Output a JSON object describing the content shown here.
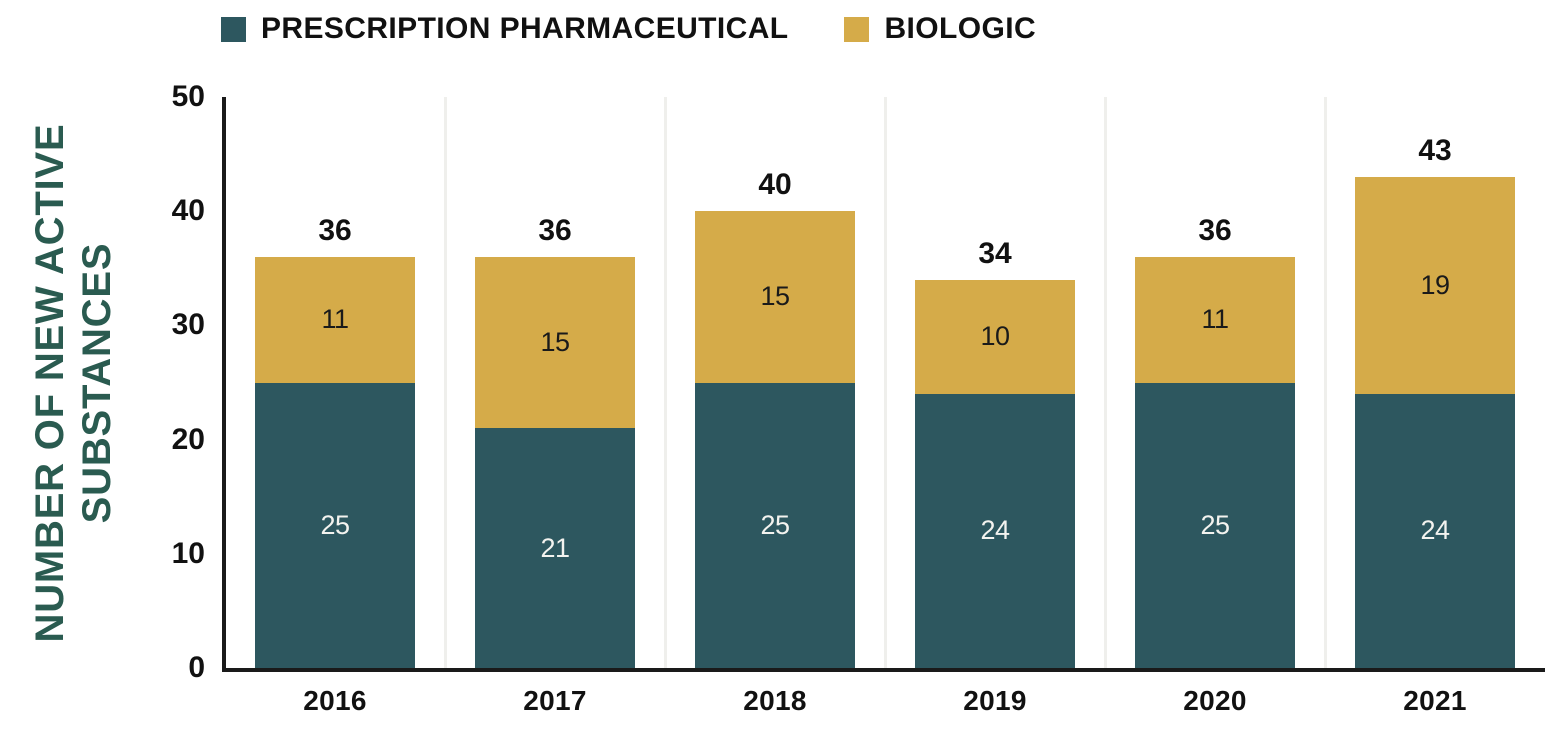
{
  "legend": {
    "items": [
      {
        "label": "PRESCRIPTION PHARMACEUTICAL"
      },
      {
        "label": "BIOLOGIC"
      }
    ]
  },
  "y_axis": {
    "title_line1": "NUMBER OF NEW ACTIVE",
    "title_line2": "SUBSTANCES"
  },
  "chart_data": {
    "type": "bar",
    "stacked": true,
    "title": "",
    "xlabel": "",
    "ylabel": "NUMBER OF NEW ACTIVE SUBSTANCES",
    "categories": [
      "2016",
      "2017",
      "2018",
      "2019",
      "2020",
      "2021"
    ],
    "series": [
      {
        "name": "PRESCRIPTION PHARMACEUTICAL",
        "values": [
          25,
          21,
          25,
          24,
          25,
          24
        ],
        "color": "#2D575F",
        "label_color": "#F3F3EF"
      },
      {
        "name": "BIOLOGIC",
        "values": [
          11,
          15,
          15,
          10,
          11,
          19
        ],
        "color": "#D5AB49",
        "label_color": "#1A1A1A"
      }
    ],
    "totals": [
      36,
      36,
      40,
      34,
      36,
      43
    ],
    "ylim": [
      0,
      50
    ],
    "yticks": [
      0,
      10,
      20,
      30,
      40,
      50
    ],
    "legend_position": "top-left",
    "grid": "vertical category separators",
    "colors": {
      "axis": "#1A1A1A",
      "tick_label": "#111111",
      "total_label": "#111111",
      "y_title": "#2A5B50",
      "gridline": "#EFEFEC",
      "background": "#FFFFFF"
    }
  }
}
